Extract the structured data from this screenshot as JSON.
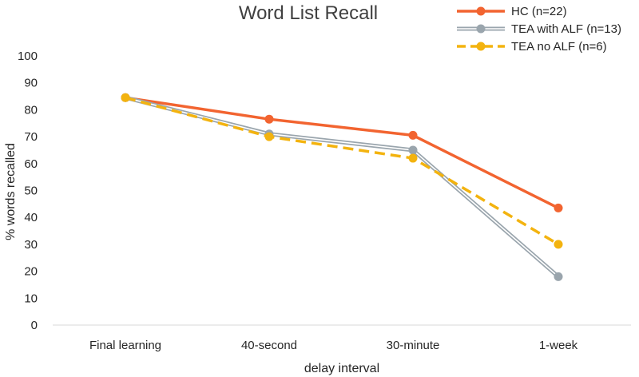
{
  "chart_data": {
    "type": "line",
    "title": "Word List Recall",
    "xlabel": "delay interval",
    "ylabel": "% words recalled",
    "categories": [
      "Final learning",
      "40-second",
      "30-minute",
      "1-week"
    ],
    "ylim": [
      0,
      100
    ],
    "yticks": [
      0,
      10,
      20,
      30,
      40,
      50,
      60,
      70,
      80,
      90,
      100
    ],
    "grid": false,
    "legend": "top-right",
    "series": [
      {
        "name": "HC (n=22)",
        "values": [
          84.5,
          76.5,
          70.5,
          43.5
        ],
        "color": "#f26430",
        "style": "solid"
      },
      {
        "name": "TEA with ALF (n=13)",
        "values": [
          84.5,
          71,
          65,
          18
        ],
        "color": "#9aa5ad",
        "style": "double"
      },
      {
        "name": "TEA no ALF (n=6)",
        "values": [
          84.5,
          70,
          62,
          30
        ],
        "color": "#f3b30f",
        "style": "dashed"
      }
    ]
  }
}
